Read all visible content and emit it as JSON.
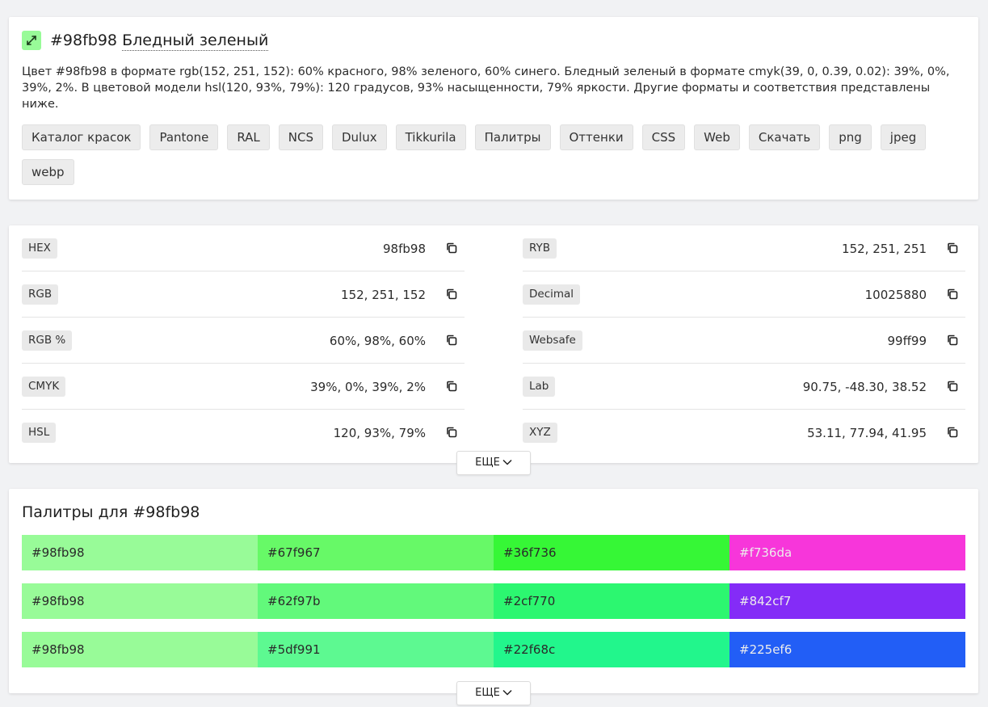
{
  "header": {
    "hex_title": "#98fb98",
    "name_title": "Бледный зеленый",
    "swatch_color": "#98fb98",
    "swatch_icon": "expand-icon",
    "description": "Цвет #98fb98 в формате rgb(152, 251, 152): 60% красного, 98% зеленого, 60% синего. Бледный зеленый в формате cmyk(39, 0, 0.39, 0.02): 39%, 0%, 39%, 2%. В цветовой модели hsl(120, 93%, 79%): 120 градусов, 93% насыщенности, 79% яркости. Другие форматы и соответствия представлены ниже."
  },
  "chips": [
    "Каталог красок",
    "Pantone",
    "RAL",
    "NCS",
    "Dulux",
    "Tikkurila",
    "Палитры",
    "Оттенки",
    "CSS",
    "Web",
    "Скачать",
    "png",
    "jpeg",
    "webp"
  ],
  "formats": {
    "left": [
      {
        "label": "HEX",
        "value": "98fb98"
      },
      {
        "label": "RGB",
        "value": "152, 251, 152"
      },
      {
        "label": "RGB %",
        "value": "60%, 98%, 60%"
      },
      {
        "label": "CMYK",
        "value": "39%, 0%, 39%, 2%"
      },
      {
        "label": "HSL",
        "value": "120, 93%, 79%"
      }
    ],
    "right": [
      {
        "label": "RYB",
        "value": "152, 251, 251"
      },
      {
        "label": "Decimal",
        "value": "10025880"
      },
      {
        "label": "Websafe",
        "value": "99ff99"
      },
      {
        "label": "Lab",
        "value": "90.75, -48.30, 38.52"
      },
      {
        "label": "XYZ",
        "value": "53.11, 77.94, 41.95"
      }
    ],
    "copy_icon": "copy-icon",
    "more_label": "ЕЩЕ"
  },
  "palettes": {
    "title": "Палитры для #98fb98",
    "more_label": "ЕЩЕ",
    "rows": [
      [
        "#98fb98",
        "#67f967",
        "#36f736",
        "#f736da"
      ],
      [
        "#98fb98",
        "#62f97b",
        "#2cf770",
        "#842cf7"
      ],
      [
        "#98fb98",
        "#5df991",
        "#22f68c",
        "#225ef6"
      ]
    ]
  }
}
